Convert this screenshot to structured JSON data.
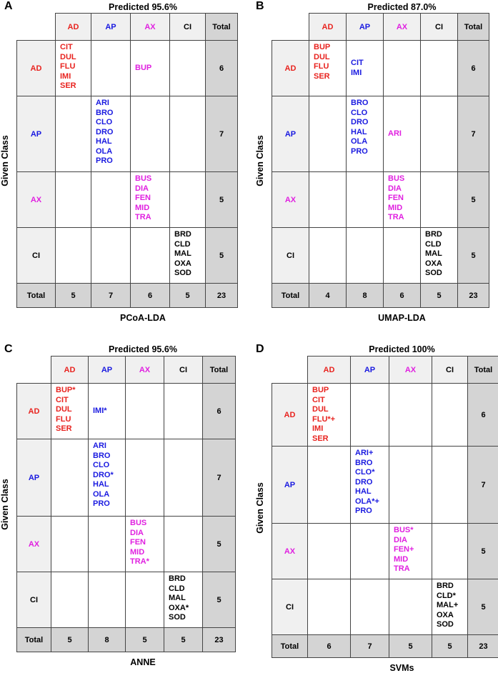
{
  "y_axis_label": "Given Class",
  "column_headers": [
    "AD",
    "AP",
    "AX",
    "CI",
    "Total"
  ],
  "row_headers": [
    "AD",
    "AP",
    "AX",
    "CI",
    "Total"
  ],
  "colors": {
    "AD": "#e8231f",
    "AP": "#1a1ae0",
    "AX": "#e020e0",
    "CI": "#000000"
  },
  "panels": [
    {
      "letter": "A",
      "title": "Predicted 95.6%",
      "method": "PCoA-LDA",
      "cells": [
        [
          [
            "CIT",
            "DUL",
            "FLU",
            "IMI",
            "SER"
          ],
          [],
          [
            "BUP"
          ],
          []
        ],
        [
          [],
          [
            "ARI",
            "BRO",
            "CLO",
            "DRO",
            "HAL",
            "OLA",
            "PRO"
          ],
          [],
          []
        ],
        [
          [],
          [],
          [
            "BUS",
            "DIA",
            "FEN",
            "MID",
            "TRA"
          ],
          []
        ],
        [
          [],
          [],
          [],
          [
            "BRD",
            "CLD",
            "MAL",
            "OXA",
            "SOD"
          ]
        ]
      ],
      "row_totals": [
        "6",
        "7",
        "5",
        "5"
      ],
      "col_totals": [
        "5",
        "7",
        "6",
        "5",
        "23"
      ]
    },
    {
      "letter": "B",
      "title": "Predicted 87.0%",
      "method": "UMAP-LDA",
      "cells": [
        [
          [
            "BUP",
            "DUL",
            "FLU",
            "SER"
          ],
          [
            "CIT",
            "IMI"
          ],
          [],
          []
        ],
        [
          [],
          [
            "BRO",
            "CLO",
            "DRO",
            "HAL",
            "OLA",
            "PRO"
          ],
          [
            "ARI"
          ],
          []
        ],
        [
          [],
          [],
          [
            "BUS",
            "DIA",
            "FEN",
            "MID",
            "TRA"
          ],
          []
        ],
        [
          [],
          [],
          [],
          [
            "BRD",
            "CLD",
            "MAL",
            "OXA",
            "SOD"
          ]
        ]
      ],
      "row_totals": [
        "6",
        "7",
        "5",
        "5"
      ],
      "col_totals": [
        "4",
        "8",
        "6",
        "5",
        "23"
      ]
    },
    {
      "letter": "C",
      "title": "Predicted 95.6%",
      "method": "ANNE",
      "cells": [
        [
          [
            "BUP*",
            "CIT",
            "DUL",
            "FLU",
            "SER"
          ],
          [
            "IMI*"
          ],
          [],
          []
        ],
        [
          [],
          [
            "ARI",
            "BRO",
            "CLO",
            "DRO*",
            "HAL",
            "OLA",
            "PRO"
          ],
          [],
          []
        ],
        [
          [],
          [],
          [
            "BUS",
            "DIA",
            "FEN",
            "MID",
            "TRA*"
          ],
          []
        ],
        [
          [],
          [],
          [],
          [
            "BRD",
            "CLD",
            "MAL",
            "OXA*",
            "SOD"
          ]
        ]
      ],
      "row_totals": [
        "6",
        "7",
        "5",
        "5"
      ],
      "col_totals": [
        "5",
        "8",
        "5",
        "5",
        "23"
      ]
    },
    {
      "letter": "D",
      "title": "Predicted 100%",
      "method": "SVMs",
      "cells": [
        [
          [
            "BUP",
            "CIT",
            "DUL",
            "FLU*+",
            "IMI",
            "SER"
          ],
          [],
          [],
          []
        ],
        [
          [],
          [
            "ARI+",
            "BRO",
            "CLO*",
            "DRO",
            "HAL",
            "OLA*+",
            "PRO"
          ],
          [],
          []
        ],
        [
          [],
          [],
          [
            "BUS*",
            "DIA",
            "FEN+",
            "MID",
            "TRA"
          ],
          []
        ],
        [
          [],
          [],
          [],
          [
            "BRD",
            "CLD*",
            "MAL+",
            "OXA",
            "SOD"
          ]
        ]
      ],
      "row_totals": [
        "6",
        "7",
        "5",
        "5"
      ],
      "col_totals": [
        "6",
        "7",
        "5",
        "5",
        "23"
      ]
    }
  ]
}
